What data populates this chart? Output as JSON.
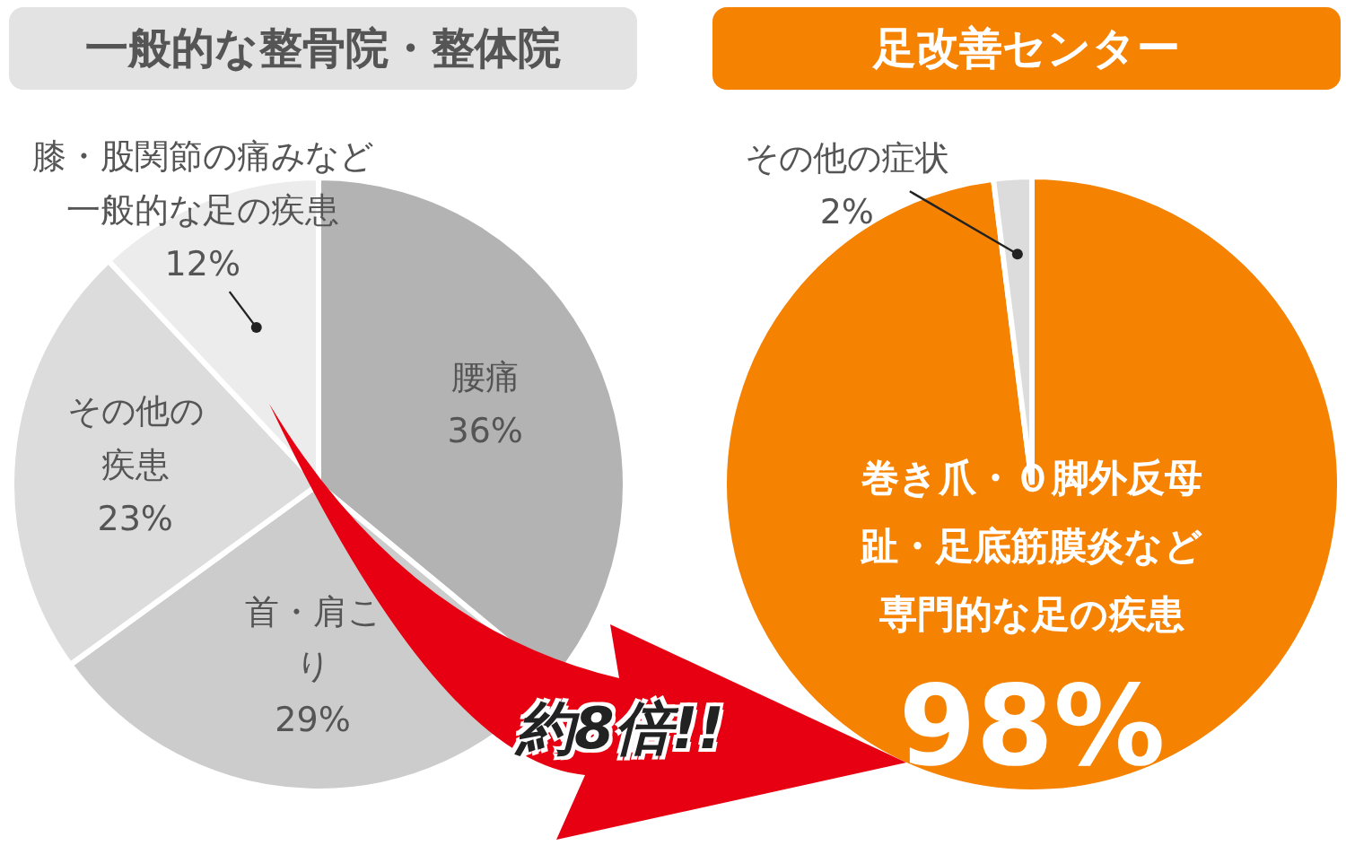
{
  "chart_data": [
    {
      "type": "pie",
      "title": "一般的な整骨院・整体院",
      "categories": [
        "腰痛",
        "首・肩こり",
        "その他の疾患",
        "膝・股関節の痛みなど一般的な足の疾患"
      ],
      "values": [
        36,
        29,
        23,
        12
      ],
      "value_labels": [
        "36%",
        "29%",
        "23%",
        "12%"
      ],
      "colors": [
        "#b3b3b3",
        "#cccccc",
        "#dcdcdc",
        "#ececec"
      ],
      "legend": false
    },
    {
      "type": "pie",
      "title": "足改善センター",
      "categories": [
        "巻き爪・Ｏ脚外反母趾・足底筋膜炎など専門的な足の疾患",
        "その他の症状"
      ],
      "values": [
        98,
        2
      ],
      "value_labels": [
        "98%",
        "2%"
      ],
      "colors": [
        "#f58200",
        "#dcdcdc"
      ],
      "legend": false,
      "annotations": [
        "約8倍!!"
      ]
    }
  ]
}
